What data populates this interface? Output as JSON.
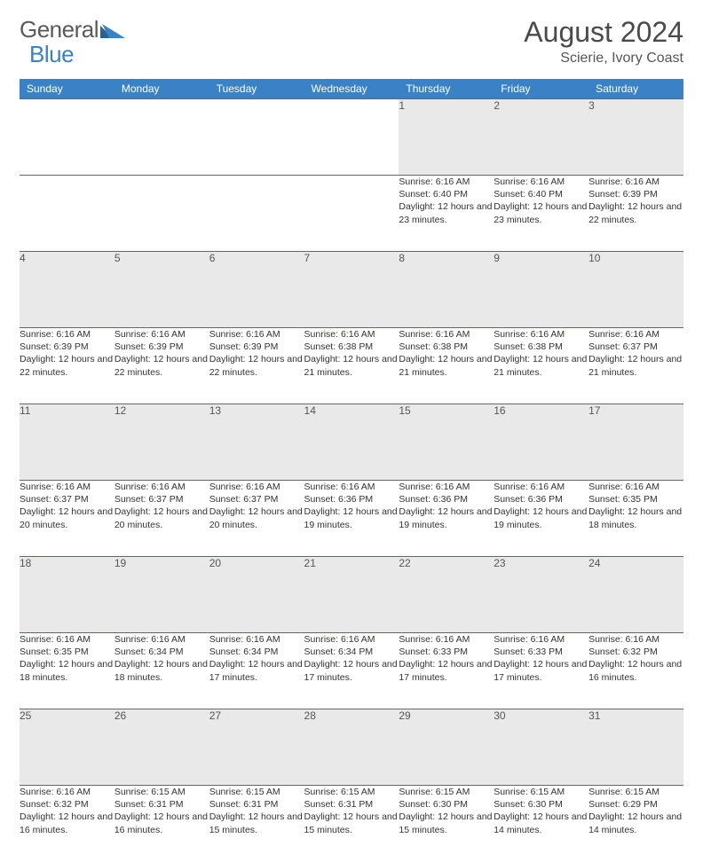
{
  "brand": {
    "word1": "General",
    "word2": "Blue"
  },
  "title": "August 2024",
  "location": "Scierie, Ivory Coast",
  "colors": {
    "header_bg": "#3b82c4",
    "header_text": "#ffffff",
    "daynum_bg": "#e9e9e9",
    "rule": "#2f5f8f",
    "logo_gray": "#5a5a5a",
    "logo_blue": "#3b82c4"
  },
  "weekdays": [
    "Sunday",
    "Monday",
    "Tuesday",
    "Wednesday",
    "Thursday",
    "Friday",
    "Saturday"
  ],
  "weeks": [
    [
      null,
      null,
      null,
      null,
      {
        "d": "1",
        "sunrise": "6:16 AM",
        "sunset": "6:40 PM",
        "daylight": "12 hours and 23 minutes."
      },
      {
        "d": "2",
        "sunrise": "6:16 AM",
        "sunset": "6:40 PM",
        "daylight": "12 hours and 23 minutes."
      },
      {
        "d": "3",
        "sunrise": "6:16 AM",
        "sunset": "6:39 PM",
        "daylight": "12 hours and 22 minutes."
      }
    ],
    [
      {
        "d": "4",
        "sunrise": "6:16 AM",
        "sunset": "6:39 PM",
        "daylight": "12 hours and 22 minutes."
      },
      {
        "d": "5",
        "sunrise": "6:16 AM",
        "sunset": "6:39 PM",
        "daylight": "12 hours and 22 minutes."
      },
      {
        "d": "6",
        "sunrise": "6:16 AM",
        "sunset": "6:39 PM",
        "daylight": "12 hours and 22 minutes."
      },
      {
        "d": "7",
        "sunrise": "6:16 AM",
        "sunset": "6:38 PM",
        "daylight": "12 hours and 21 minutes."
      },
      {
        "d": "8",
        "sunrise": "6:16 AM",
        "sunset": "6:38 PM",
        "daylight": "12 hours and 21 minutes."
      },
      {
        "d": "9",
        "sunrise": "6:16 AM",
        "sunset": "6:38 PM",
        "daylight": "12 hours and 21 minutes."
      },
      {
        "d": "10",
        "sunrise": "6:16 AM",
        "sunset": "6:37 PM",
        "daylight": "12 hours and 21 minutes."
      }
    ],
    [
      {
        "d": "11",
        "sunrise": "6:16 AM",
        "sunset": "6:37 PM",
        "daylight": "12 hours and 20 minutes."
      },
      {
        "d": "12",
        "sunrise": "6:16 AM",
        "sunset": "6:37 PM",
        "daylight": "12 hours and 20 minutes."
      },
      {
        "d": "13",
        "sunrise": "6:16 AM",
        "sunset": "6:37 PM",
        "daylight": "12 hours and 20 minutes."
      },
      {
        "d": "14",
        "sunrise": "6:16 AM",
        "sunset": "6:36 PM",
        "daylight": "12 hours and 19 minutes."
      },
      {
        "d": "15",
        "sunrise": "6:16 AM",
        "sunset": "6:36 PM",
        "daylight": "12 hours and 19 minutes."
      },
      {
        "d": "16",
        "sunrise": "6:16 AM",
        "sunset": "6:36 PM",
        "daylight": "12 hours and 19 minutes."
      },
      {
        "d": "17",
        "sunrise": "6:16 AM",
        "sunset": "6:35 PM",
        "daylight": "12 hours and 18 minutes."
      }
    ],
    [
      {
        "d": "18",
        "sunrise": "6:16 AM",
        "sunset": "6:35 PM",
        "daylight": "12 hours and 18 minutes."
      },
      {
        "d": "19",
        "sunrise": "6:16 AM",
        "sunset": "6:34 PM",
        "daylight": "12 hours and 18 minutes."
      },
      {
        "d": "20",
        "sunrise": "6:16 AM",
        "sunset": "6:34 PM",
        "daylight": "12 hours and 17 minutes."
      },
      {
        "d": "21",
        "sunrise": "6:16 AM",
        "sunset": "6:34 PM",
        "daylight": "12 hours and 17 minutes."
      },
      {
        "d": "22",
        "sunrise": "6:16 AM",
        "sunset": "6:33 PM",
        "daylight": "12 hours and 17 minutes."
      },
      {
        "d": "23",
        "sunrise": "6:16 AM",
        "sunset": "6:33 PM",
        "daylight": "12 hours and 17 minutes."
      },
      {
        "d": "24",
        "sunrise": "6:16 AM",
        "sunset": "6:32 PM",
        "daylight": "12 hours and 16 minutes."
      }
    ],
    [
      {
        "d": "25",
        "sunrise": "6:16 AM",
        "sunset": "6:32 PM",
        "daylight": "12 hours and 16 minutes."
      },
      {
        "d": "26",
        "sunrise": "6:15 AM",
        "sunset": "6:31 PM",
        "daylight": "12 hours and 16 minutes."
      },
      {
        "d": "27",
        "sunrise": "6:15 AM",
        "sunset": "6:31 PM",
        "daylight": "12 hours and 15 minutes."
      },
      {
        "d": "28",
        "sunrise": "6:15 AM",
        "sunset": "6:31 PM",
        "daylight": "12 hours and 15 minutes."
      },
      {
        "d": "29",
        "sunrise": "6:15 AM",
        "sunset": "6:30 PM",
        "daylight": "12 hours and 15 minutes."
      },
      {
        "d": "30",
        "sunrise": "6:15 AM",
        "sunset": "6:30 PM",
        "daylight": "12 hours and 14 minutes."
      },
      {
        "d": "31",
        "sunrise": "6:15 AM",
        "sunset": "6:29 PM",
        "daylight": "12 hours and 14 minutes."
      }
    ]
  ],
  "labels": {
    "sunrise": "Sunrise:",
    "sunset": "Sunset:",
    "daylight": "Daylight:"
  }
}
